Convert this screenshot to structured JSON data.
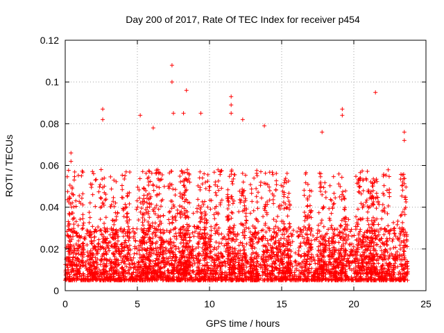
{
  "chart_data": {
    "type": "scatter",
    "title": "Day 200 of 2017, Rate Of TEC Index for receiver p454",
    "xlabel": "GPS time / hours",
    "ylabel": "ROTI / TECUs",
    "xlim": [
      0,
      25
    ],
    "ylim": [
      0,
      0.12
    ],
    "xticks": [
      0,
      5,
      10,
      15,
      20,
      25
    ],
    "yticks": [
      0,
      0.02,
      0.04,
      0.06,
      0.08,
      0.1,
      0.12
    ],
    "xtick_labels": [
      "0",
      "5",
      "10",
      "15",
      "20",
      "25"
    ],
    "ytick_labels": [
      "0",
      "0.02",
      "0.04",
      "0.06",
      "0.08",
      "0.1",
      "0.12"
    ],
    "grid": true,
    "marker": "+",
    "color": "#ff0000",
    "series": [
      {
        "name": "ROTI",
        "x_range": [
          0,
          23.75
        ],
        "typical_range": [
          0.005,
          0.03
        ],
        "notable_points": [
          {
            "x": 0.4,
            "y": 0.066
          },
          {
            "x": 0.4,
            "y": 0.062
          },
          {
            "x": 2.6,
            "y": 0.087
          },
          {
            "x": 2.6,
            "y": 0.082
          },
          {
            "x": 5.2,
            "y": 0.084
          },
          {
            "x": 6.1,
            "y": 0.078
          },
          {
            "x": 7.4,
            "y": 0.108
          },
          {
            "x": 7.4,
            "y": 0.1
          },
          {
            "x": 7.5,
            "y": 0.085
          },
          {
            "x": 8.2,
            "y": 0.085
          },
          {
            "x": 8.4,
            "y": 0.096
          },
          {
            "x": 9.4,
            "y": 0.085
          },
          {
            "x": 11.5,
            "y": 0.093
          },
          {
            "x": 11.5,
            "y": 0.089
          },
          {
            "x": 11.5,
            "y": 0.085
          },
          {
            "x": 12.3,
            "y": 0.082
          },
          {
            "x": 13.8,
            "y": 0.079
          },
          {
            "x": 17.8,
            "y": 0.076
          },
          {
            "x": 19.2,
            "y": 0.087
          },
          {
            "x": 19.2,
            "y": 0.084
          },
          {
            "x": 21.5,
            "y": 0.095
          },
          {
            "x": 23.5,
            "y": 0.076
          },
          {
            "x": 23.5,
            "y": 0.072
          }
        ],
        "burst_times": [
          0.4,
          1.0,
          1.9,
          2.6,
          3.4,
          4.2,
          5.2,
          5.6,
          6.1,
          6.6,
          7.4,
          8.2,
          8.4,
          9.4,
          9.9,
          10.6,
          11.5,
          12.3,
          13.1,
          13.8,
          14.4,
          14.9,
          15.4,
          16.8,
          17.8,
          18.5,
          19.2,
          20.4,
          21.1,
          21.5,
          22.2,
          23.5
        ]
      }
    ]
  }
}
